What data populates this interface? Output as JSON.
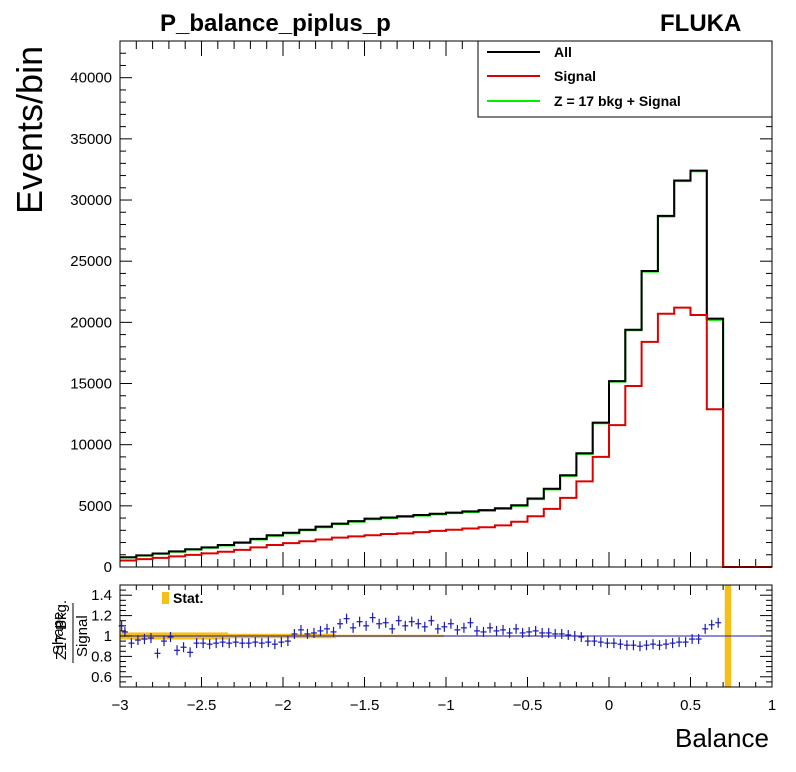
{
  "header": {
    "title": "P_balance_piplus_p",
    "generator": "FLUKA"
  },
  "chart_data": [
    {
      "type": "line",
      "style": "step-histogram",
      "xlabel": "Balance",
      "ylabel": "Events/bin",
      "xlim": [
        -3,
        1
      ],
      "ylim": [
        0,
        43000
      ],
      "bin_width": 0.1,
      "x_ticks": [
        "−3",
        "−2.5",
        "−2",
        "−1.5",
        "−1",
        "−0.5",
        "0",
        "0.5",
        "1"
      ],
      "y_ticks": [
        "0",
        "5000",
        "10000",
        "15000",
        "20000",
        "25000",
        "30000",
        "35000",
        "40000"
      ],
      "legend_position": "top-right",
      "legend": [
        "All",
        "Signal",
        "Z = 17 bkg + Signal"
      ],
      "colors": {
        "All": "#000000",
        "Signal": "#dd0000",
        "Z = 17 bkg + Signal": "#00ee00"
      },
      "x": [
        -3.0,
        -2.9,
        -2.8,
        -2.7,
        -2.6,
        -2.5,
        -2.4,
        -2.3,
        -2.2,
        -2.1,
        -2.0,
        -1.9,
        -1.8,
        -1.7,
        -1.6,
        -1.5,
        -1.4,
        -1.3,
        -1.2,
        -1.1,
        -1.0,
        -0.9,
        -0.8,
        -0.7,
        -0.6,
        -0.5,
        -0.4,
        -0.3,
        -0.2,
        -0.1,
        0.0,
        0.1,
        0.2,
        0.3,
        0.4,
        0.5,
        0.6,
        0.7,
        0.8,
        0.9
      ],
      "series": [
        {
          "name": "All",
          "values": [
            800,
            950,
            1100,
            1280,
            1450,
            1600,
            1800,
            2000,
            2300,
            2600,
            2800,
            3050,
            3300,
            3550,
            3750,
            3950,
            4050,
            4150,
            4250,
            4350,
            4450,
            4550,
            4650,
            4800,
            5050,
            5600,
            6400,
            7500,
            9300,
            11800,
            15200,
            19400,
            24200,
            28700,
            31600,
            32400,
            20300,
            0,
            0,
            0
          ]
        },
        {
          "name": "Signal",
          "values": [
            530,
            640,
            750,
            870,
            990,
            1110,
            1250,
            1400,
            1600,
            1800,
            1950,
            2100,
            2250,
            2400,
            2500,
            2600,
            2700,
            2750,
            2850,
            2950,
            3050,
            3150,
            3250,
            3400,
            3700,
            4150,
            4750,
            5650,
            7000,
            9000,
            11600,
            14800,
            18400,
            20700,
            21200,
            20600,
            12900,
            0,
            0,
            0
          ]
        },
        {
          "name": "Z = 17 bkg + Signal",
          "values": [
            780,
            930,
            1080,
            1250,
            1420,
            1570,
            1760,
            1960,
            2250,
            2550,
            2750,
            3000,
            3250,
            3500,
            3700,
            3900,
            4000,
            4100,
            4200,
            4300,
            4400,
            4500,
            4600,
            4750,
            5000,
            5550,
            6350,
            7450,
            9250,
            11750,
            15150,
            19350,
            24150,
            28650,
            31550,
            32350,
            20200,
            0,
            0,
            0
          ]
        }
      ]
    },
    {
      "type": "scatter",
      "xlim": [
        -3,
        1
      ],
      "ylim": [
        0.5,
        1.5
      ],
      "ylabel_prefix": "Shape",
      "ylabel_numerator": "Z17 Bkg.",
      "ylabel_denominator": "Signal",
      "y_ticks": [
        "0.6",
        "0.8",
        "1",
        "1.2",
        "1.4"
      ],
      "legend": [
        "Stat."
      ],
      "colors": {
        "points": "#1a1ab4",
        "band": "#f5bf1a",
        "reference": "#1a1ab4"
      },
      "reference_line": 1.0,
      "band_end_x": -0.35,
      "band_half_width": [
        0.035,
        0.022,
        0.012,
        0.006
      ],
      "spike_x": [
        0.71,
        0.75
      ],
      "points": {
        "x": [
          -2.99,
          -2.97,
          -2.93,
          -2.89,
          -2.85,
          -2.81,
          -2.77,
          -2.73,
          -2.69,
          -2.65,
          -2.61,
          -2.57,
          -2.53,
          -2.49,
          -2.45,
          -2.41,
          -2.37,
          -2.33,
          -2.29,
          -2.25,
          -2.21,
          -2.17,
          -2.13,
          -2.09,
          -2.05,
          -2.01,
          -1.97,
          -1.93,
          -1.89,
          -1.85,
          -1.81,
          -1.77,
          -1.73,
          -1.69,
          -1.65,
          -1.61,
          -1.57,
          -1.53,
          -1.49,
          -1.45,
          -1.41,
          -1.37,
          -1.33,
          -1.29,
          -1.25,
          -1.21,
          -1.17,
          -1.13,
          -1.09,
          -1.05,
          -1.01,
          -0.97,
          -0.93,
          -0.89,
          -0.85,
          -0.81,
          -0.77,
          -0.73,
          -0.69,
          -0.65,
          -0.61,
          -0.57,
          -0.53,
          -0.49,
          -0.45,
          -0.41,
          -0.37,
          -0.33,
          -0.29,
          -0.25,
          -0.21,
          -0.17,
          -0.13,
          -0.09,
          -0.05,
          -0.01,
          0.03,
          0.07,
          0.11,
          0.15,
          0.19,
          0.23,
          0.27,
          0.31,
          0.35,
          0.39,
          0.43,
          0.47,
          0.51,
          0.55,
          0.59,
          0.63,
          0.67
        ],
        "y": [
          1.1,
          1.04,
          0.93,
          0.96,
          0.97,
          0.98,
          0.83,
          0.95,
          0.99,
          0.86,
          0.89,
          0.84,
          0.93,
          0.93,
          0.92,
          0.93,
          0.94,
          0.93,
          0.94,
          0.93,
          0.93,
          0.94,
          0.93,
          0.94,
          0.92,
          0.94,
          0.95,
          1.02,
          1.06,
          1.02,
          1.03,
          1.05,
          1.07,
          1.04,
          1.12,
          1.17,
          1.08,
          1.14,
          1.1,
          1.18,
          1.12,
          1.13,
          1.07,
          1.15,
          1.1,
          1.14,
          1.12,
          1.09,
          1.15,
          1.07,
          1.09,
          1.12,
          1.06,
          1.08,
          1.13,
          1.05,
          1.04,
          1.08,
          1.05,
          1.06,
          1.03,
          1.07,
          1.03,
          1.04,
          1.05,
          1.03,
          1.03,
          1.02,
          1.02,
          1.01,
          1.0,
          0.99,
          0.95,
          0.95,
          0.94,
          0.93,
          0.93,
          0.92,
          0.91,
          0.91,
          0.9,
          0.91,
          0.92,
          0.91,
          0.92,
          0.93,
          0.94,
          0.94,
          0.97,
          0.97,
          1.07,
          1.11,
          1.13
        ]
      }
    }
  ]
}
